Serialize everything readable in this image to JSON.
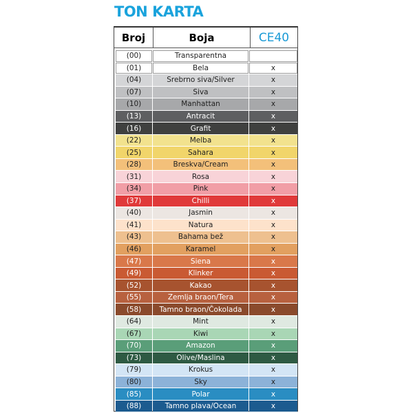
{
  "title": "TON KARTA",
  "headers": {
    "broj": "Broj",
    "boja": "Boja",
    "product": "CE40"
  },
  "accent": "#1aa3dc",
  "rows": [
    {
      "code": "(00)",
      "name": "Transparentna",
      "mark": "",
      "color": "#ffffff"
    },
    {
      "code": "(01)",
      "name": "Bela",
      "mark": "x",
      "color": "#ffffff"
    },
    {
      "code": "(04)",
      "name": "Srebrno siva/Silver",
      "mark": "x",
      "color": "#d4d5d7"
    },
    {
      "code": "(07)",
      "name": "Siva",
      "mark": "x",
      "color": "#bfc0c2"
    },
    {
      "code": "(10)",
      "name": "Manhattan",
      "mark": "x",
      "color": "#a7a8aa"
    },
    {
      "code": "(13)",
      "name": "Antracit",
      "mark": "x",
      "color": "#5e5f61",
      "light": true
    },
    {
      "code": "(16)",
      "name": "Grafit",
      "mark": "x",
      "color": "#3f403f",
      "light": true
    },
    {
      "code": "(22)",
      "name": "Melba",
      "mark": "x",
      "color": "#f2e28e"
    },
    {
      "code": "(25)",
      "name": "Sahara",
      "mark": "x",
      "color": "#f1d56a"
    },
    {
      "code": "(28)",
      "name": "Breskva/Cream",
      "mark": "x",
      "color": "#f3c07a"
    },
    {
      "code": "(31)",
      "name": "Rosa",
      "mark": "x",
      "color": "#f8d3d8"
    },
    {
      "code": "(34)",
      "name": "Pink",
      "mark": "x",
      "color": "#f19ea6"
    },
    {
      "code": "(37)",
      "name": "Chilli",
      "mark": "x",
      "color": "#e03a3a",
      "light": true
    },
    {
      "code": "(40)",
      "name": "Jasmin",
      "mark": "x",
      "color": "#ece6e2"
    },
    {
      "code": "(41)",
      "name": "Natura",
      "mark": "x",
      "color": "#fde2cb"
    },
    {
      "code": "(43)",
      "name": "Bahama bež",
      "mark": "x",
      "color": "#eec08f"
    },
    {
      "code": "(46)",
      "name": "Karamel",
      "mark": "x",
      "color": "#e2a060"
    },
    {
      "code": "(47)",
      "name": "Siena",
      "mark": "x",
      "color": "#d9784a",
      "light": true
    },
    {
      "code": "(49)",
      "name": "Klinker",
      "mark": "x",
      "color": "#c95a33",
      "light": true
    },
    {
      "code": "(52)",
      "name": "Kakao",
      "mark": "x",
      "color": "#a7532f",
      "light": true
    },
    {
      "code": "(55)",
      "name": "Zemlja braon/Tera",
      "mark": "x",
      "color": "#b8613f",
      "light": true
    },
    {
      "code": "(58)",
      "name": "Tamno braon/Čokolada",
      "mark": "x",
      "color": "#8a4a2c",
      "light": true
    },
    {
      "code": "(64)",
      "name": "Mint",
      "mark": "x",
      "color": "#dfe9e1"
    },
    {
      "code": "(67)",
      "name": "Kiwi",
      "mark": "x",
      "color": "#a9d6b5"
    },
    {
      "code": "(70)",
      "name": "Amazon",
      "mark": "x",
      "color": "#5a9e79",
      "light": true
    },
    {
      "code": "(73)",
      "name": "Olive/Maslina",
      "mark": "x",
      "color": "#2e5a43",
      "light": true
    },
    {
      "code": "(79)",
      "name": "Krokus",
      "mark": "x",
      "color": "#d3e5f5"
    },
    {
      "code": "(80)",
      "name": "Sky",
      "mark": "x",
      "color": "#8cb2d8"
    },
    {
      "code": "(85)",
      "name": "Polar",
      "mark": "x",
      "color": "#2a8dc2",
      "light": true
    },
    {
      "code": "(88)",
      "name": "Tamno plava/Ocean",
      "mark": "x",
      "color": "#1c5b8f",
      "light": true
    }
  ]
}
